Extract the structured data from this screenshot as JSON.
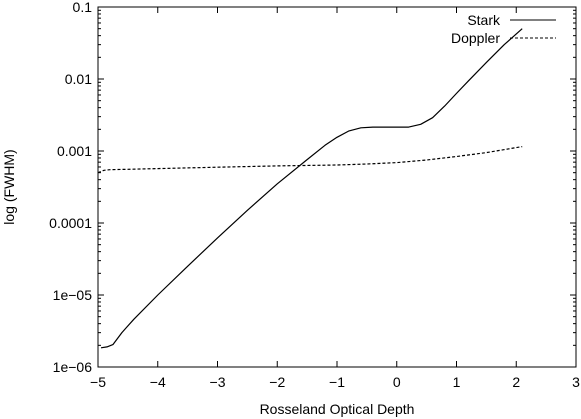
{
  "chart_data": {
    "type": "line",
    "title": "",
    "xlabel": "Rosseland Optical Depth",
    "ylabel": "log (FWHM)",
    "xlim": [
      -5,
      3
    ],
    "ylim": [
      1e-06,
      0.1
    ],
    "y_scale": "log",
    "x_ticks": [
      "-5",
      "-4",
      "-3",
      "-2",
      "-1",
      "0",
      "1",
      "2",
      "3"
    ],
    "y_ticks": [
      "1e-06",
      "1e-05",
      "0.0001",
      "0.001",
      "0.01",
      "0.1"
    ],
    "legend_position": "top-right",
    "grid": false,
    "series": [
      {
        "name": "Stark",
        "style": "solid",
        "color": "#000000",
        "x": [
          -4.95,
          -4.85,
          -4.75,
          -4.6,
          -4.4,
          -4.0,
          -3.5,
          -3.0,
          -2.5,
          -2.0,
          -1.5,
          -1.2,
          -1.0,
          -0.8,
          -0.6,
          -0.4,
          -0.2,
          0.0,
          0.2,
          0.4,
          0.6,
          0.8,
          1.0,
          1.2,
          1.5,
          1.8,
          2.1
        ],
        "y": [
          1.85e-06,
          1.9e-06,
          2.05e-06,
          3e-06,
          4.6e-06,
          1e-05,
          2.5e-05,
          6.2e-05,
          0.00015,
          0.00035,
          0.00076,
          0.0012,
          0.00155,
          0.0019,
          0.0021,
          0.00215,
          0.00215,
          0.00215,
          0.00215,
          0.00235,
          0.0029,
          0.0042,
          0.0063,
          0.0094,
          0.017,
          0.03,
          0.05
        ]
      },
      {
        "name": "Doppler",
        "style": "dashed",
        "color": "#000000",
        "x": [
          -5.0,
          -4.9,
          -4.8,
          -4.0,
          -3.0,
          -2.0,
          -1.0,
          -0.5,
          0.0,
          0.5,
          1.0,
          1.5,
          2.1
        ],
        "y": [
          0.0005,
          0.00054,
          0.00055,
          0.00057,
          0.000595,
          0.00062,
          0.00064,
          0.00066,
          0.00069,
          0.00075,
          0.00084,
          0.00095,
          0.00115
        ]
      }
    ]
  }
}
